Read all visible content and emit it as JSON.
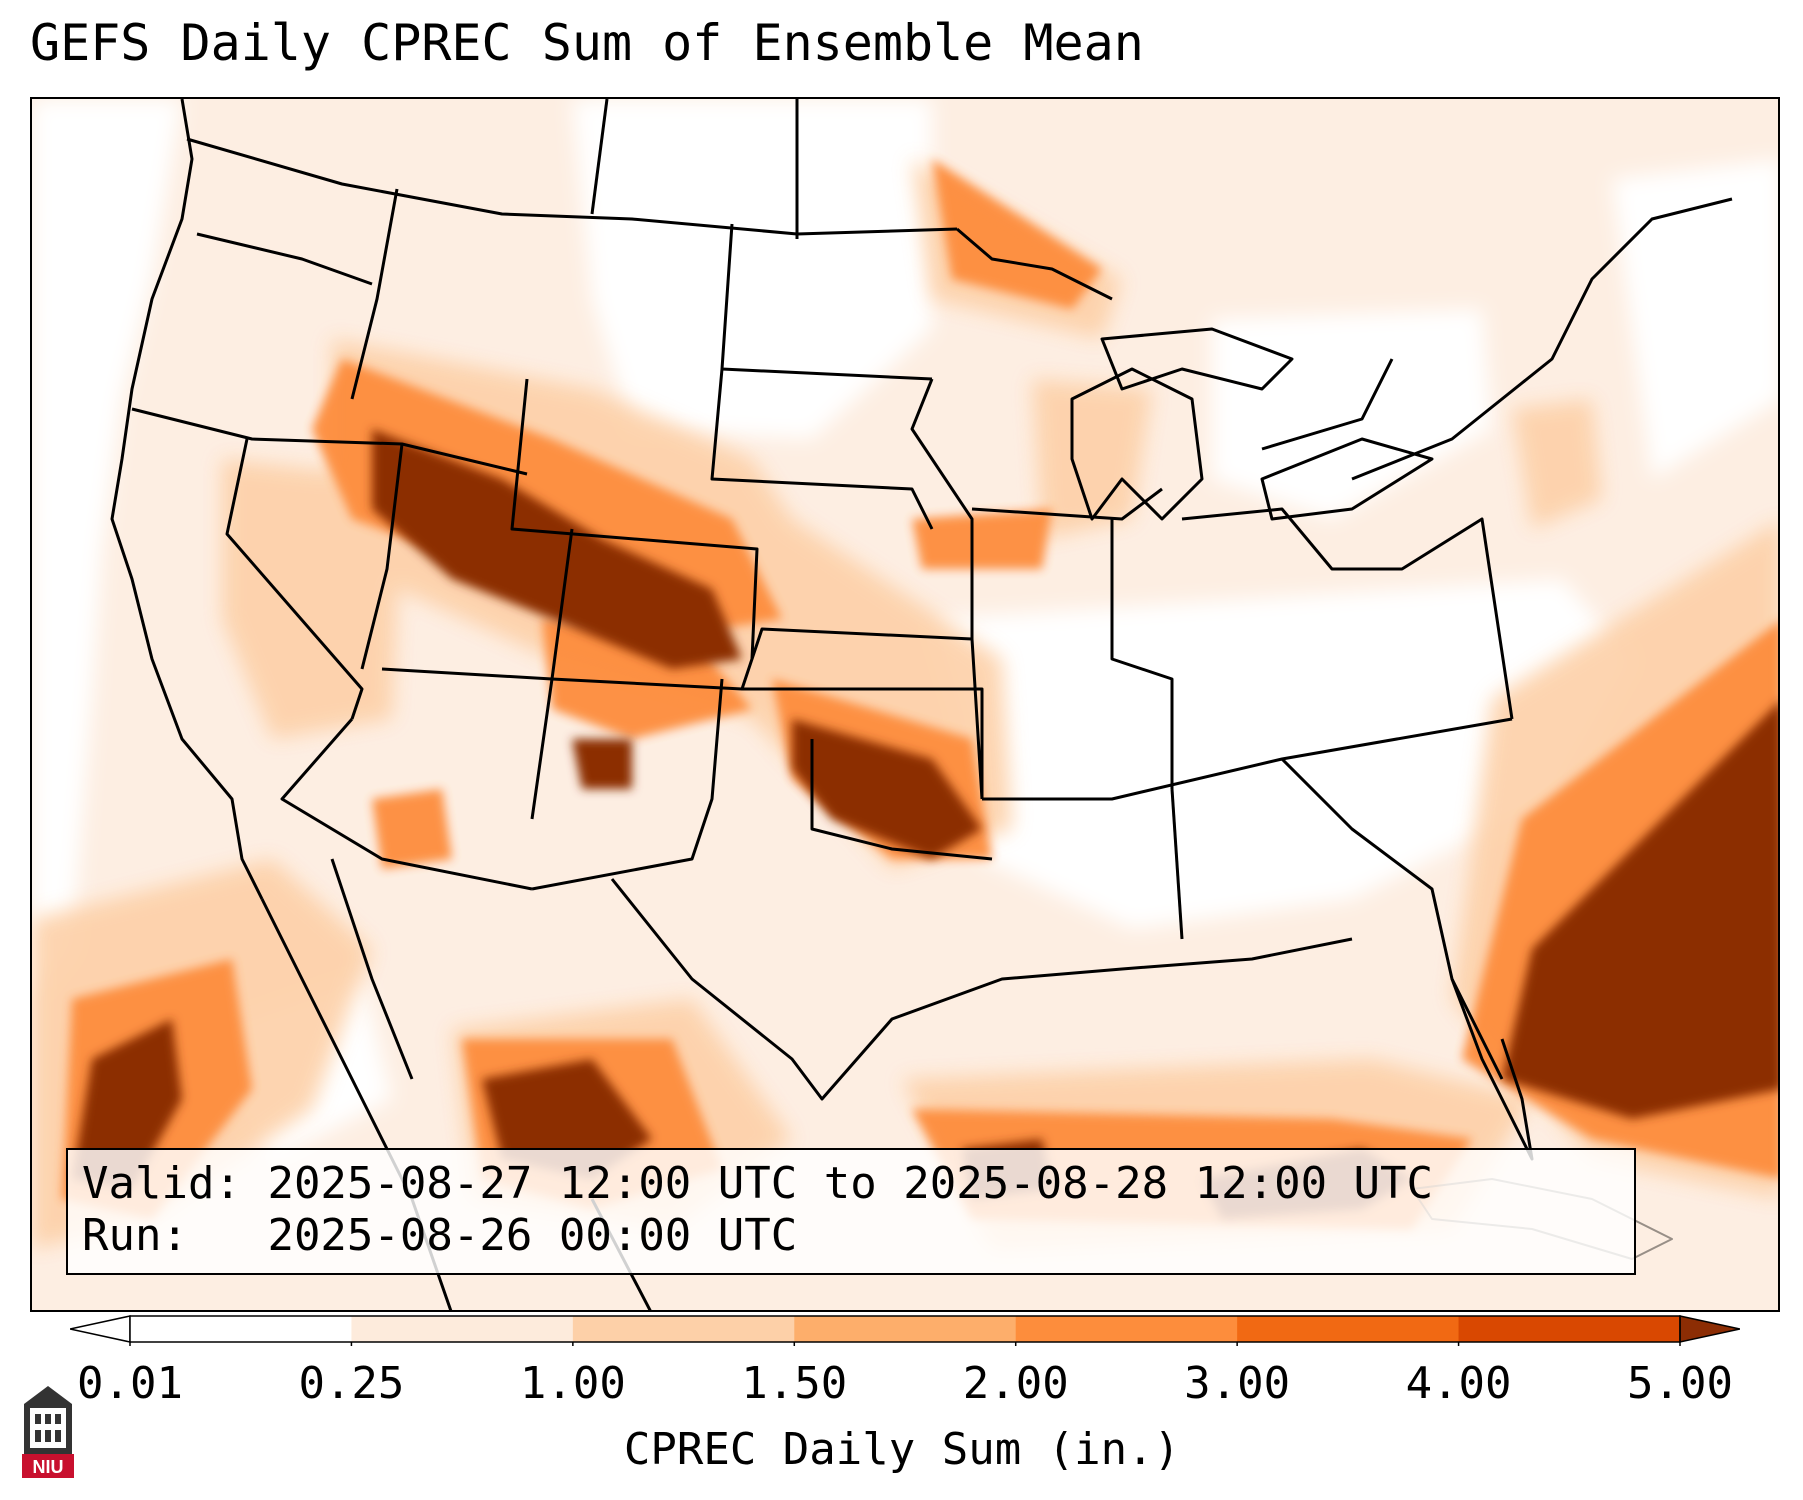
{
  "title": "GEFS Daily CPREC Sum of Ensemble Mean",
  "info": {
    "valid_label": "Valid:",
    "valid_value": "2025-08-27 12:00 UTC to 2025-08-28 12:00 UTC",
    "run_label": "Run:",
    "run_value": "2025-08-26 00:00 UTC"
  },
  "colorbar": {
    "label": "CPREC Daily Sum (in.)",
    "ticks": [
      "0.01",
      "0.25",
      "1.00",
      "1.50",
      "2.00",
      "3.00",
      "4.00",
      "5.00"
    ],
    "colors": [
      "#ffffff",
      "#fdebdc",
      "#fdd0a8",
      "#fdae6b",
      "#fd8d3c",
      "#f16913",
      "#d94801",
      "#8c2d04"
    ]
  },
  "logo": {
    "text": "NIU"
  }
}
